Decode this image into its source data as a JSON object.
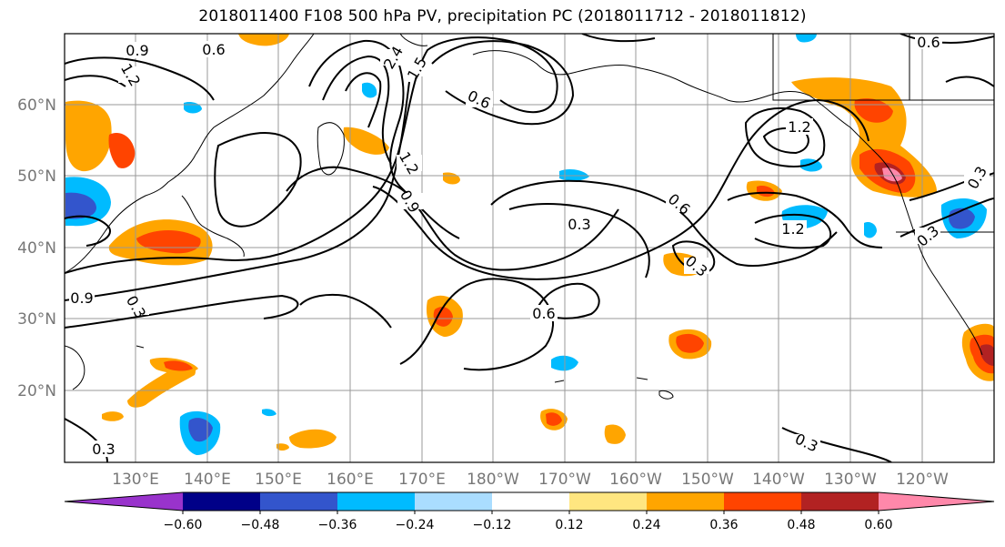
{
  "title": "2018011400 F108 500 hPa PV, precipitation PC (2018011712 - 2018011812)",
  "lat_labels": [
    "60°N",
    "50°N",
    "40°N",
    "30°N",
    "20°N"
  ],
  "lon_labels": [
    "130°E",
    "140°E",
    "150°E",
    "160°E",
    "170°E",
    "180°W",
    "170°W",
    "160°W",
    "150°W",
    "140°W",
    "130°W",
    "120°W"
  ],
  "colorbar": {
    "colors": [
      "#9933cc",
      "#000088",
      "#3355cc",
      "#00bbff",
      "#aaddff",
      "#ffffff",
      "#ffe680",
      "#ffa500",
      "#ff4400",
      "#b22222",
      "#ff88aa"
    ],
    "tick_labels": [
      "−0.60",
      "−0.48",
      "−0.36",
      "−0.24",
      "−0.12",
      "0.12",
      "0.24",
      "0.36",
      "0.48",
      "0.60"
    ]
  },
  "contour_labels": [
    "0.9",
    "0.6",
    "1.2",
    "1.5",
    "2.4",
    "0.6",
    "1.2",
    "0.9",
    "0.3",
    "0.6",
    "1.2",
    "0.6",
    "0.3",
    "0.3",
    "1.2",
    "0.3",
    "0.6",
    "0.3",
    "0.9",
    "0.3",
    "0.3"
  ]
}
